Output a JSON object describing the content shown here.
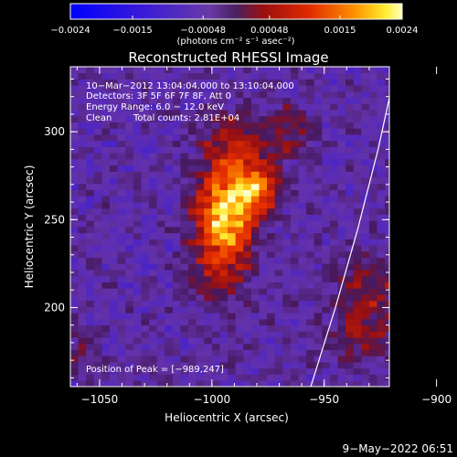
{
  "chart_data": {
    "type": "heatmap",
    "title": "Reconstructed RHESSI Image",
    "xlabel": "Heliocentric X (arcsec)",
    "ylabel": "Heliocentric Y (arcsec)",
    "xlim": [
      -1063,
      -921
    ],
    "ylim": [
      155,
      337
    ],
    "xticks": [
      -1050,
      -1000,
      -950,
      -900
    ],
    "xtick_labels": [
      "−1050",
      "−1000",
      "−950",
      "−900"
    ],
    "yticks": [
      200,
      250,
      300
    ],
    "ytick_labels": [
      "200",
      "250",
      "300"
    ],
    "colorbar": {
      "range": [
        -0.0024,
        0.0024
      ],
      "ticks": [
        -0.0024,
        -0.0015,
        -0.00048,
        0.00048,
        0.0015,
        0.0024
      ],
      "tick_labels": [
        "−0.0024",
        "−0.0015",
        "−0.00048",
        "0.00048",
        "0.0015",
        "0.0024"
      ],
      "units_label": "(photons cm⁻² s⁻¹ asec⁻²)"
    },
    "annotations": {
      "time_range": "10−Mar−2012 13:04:04.000 to 13:10:04.000",
      "detectors": "Detectors: 3F 5F 6F 7F 8F, Att 0",
      "energy_range": "Energy Range: 6.0 − 12.0 keV",
      "clean_label": "Clean",
      "total_counts": "Total counts: 2.81E+04",
      "peak_position": "Position of Peak = [−989,247]"
    },
    "peak": {
      "x": -989,
      "y": 247
    },
    "sources": [
      {
        "x": -994,
        "y": 255,
        "sx": 9,
        "sy": 16,
        "amplitude": 0.0024
      },
      {
        "x": -979,
        "y": 267,
        "sx": 7,
        "sy": 9,
        "amplitude": 0.0016
      },
      {
        "x": -989,
        "y": 290,
        "sx": 10,
        "sy": 14,
        "amplitude": 0.0012
      },
      {
        "x": -996,
        "y": 225,
        "sx": 9,
        "sy": 16,
        "amplitude": 0.0011
      },
      {
        "x": -930,
        "y": 210,
        "sx": 11,
        "sy": 14,
        "amplitude": 0.0009
      },
      {
        "x": -932,
        "y": 180,
        "sx": 13,
        "sy": 10,
        "amplitude": 0.0007
      },
      {
        "x": -965,
        "y": 300,
        "sx": 7,
        "sy": 11,
        "amplitude": 0.0007
      },
      {
        "x": -1058,
        "y": 175,
        "sx": 6,
        "sy": 10,
        "amplitude": 0.0005
      }
    ],
    "limb_curve": {
      "x": [
        -956,
        -945,
        -935,
        -926,
        -918
      ],
      "y": [
        155,
        200,
        245,
        290,
        337
      ]
    }
  },
  "footer": {
    "date_stamp": "9−May−2022 06:51"
  }
}
